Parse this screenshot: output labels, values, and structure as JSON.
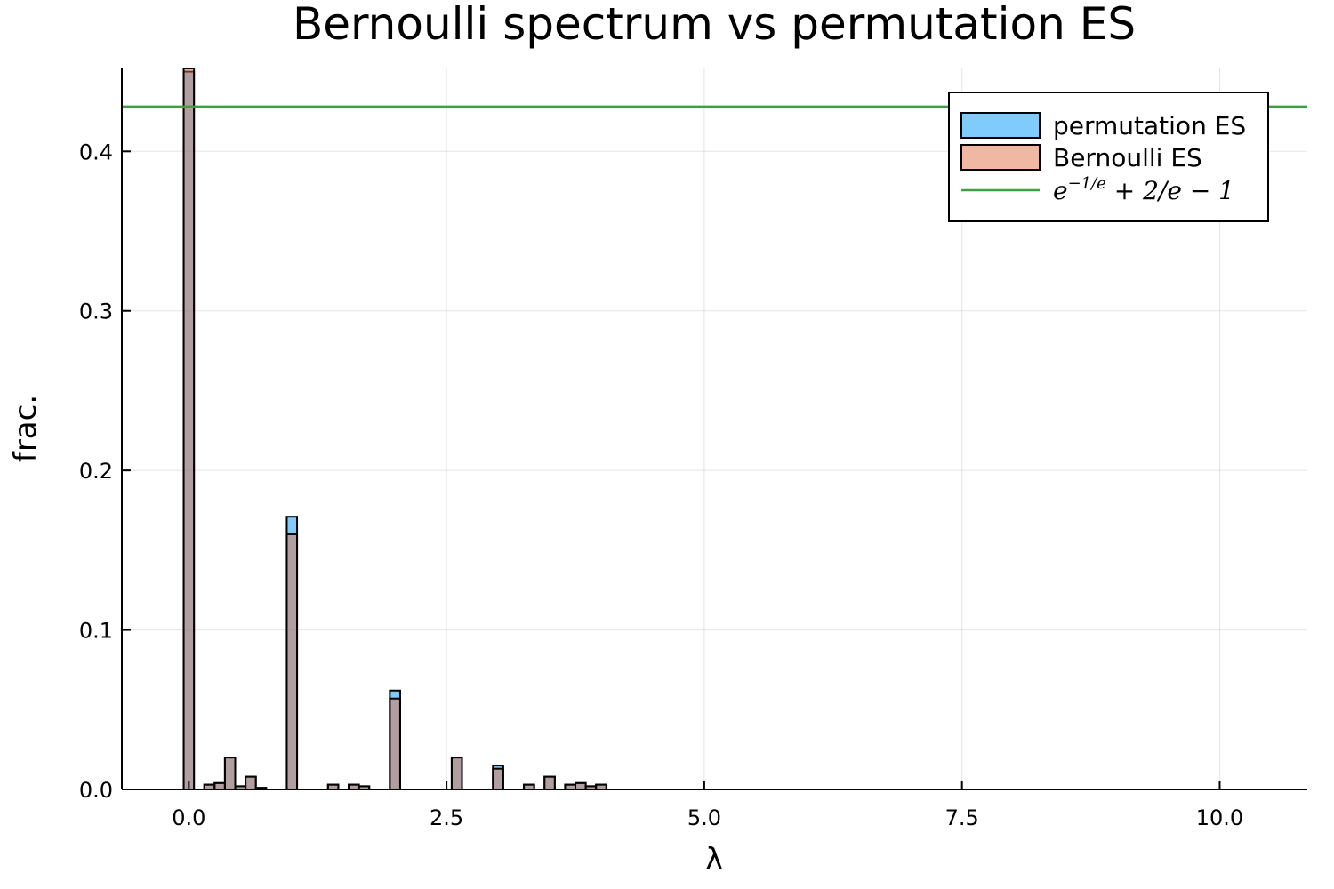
{
  "chart_data": {
    "type": "bar",
    "title": "Bernoulli spectrum vs permutation ES",
    "xlabel": "λ",
    "ylabel": "frac.",
    "xlim": [
      -0.65,
      10.85
    ],
    "ylim": [
      0,
      0.452
    ],
    "xticks": [
      0.0,
      2.5,
      5.0,
      7.5,
      10.0
    ],
    "xtick_labels": [
      "0.0",
      "2.5",
      "5.0",
      "7.5",
      "10.0"
    ],
    "yticks": [
      0.0,
      0.1,
      0.2,
      0.3,
      0.4
    ],
    "ytick_labels": [
      "0.0",
      "0.1",
      "0.2",
      "0.3",
      "0.4"
    ],
    "grid": true,
    "legend_position": "top-right",
    "bin_width": 0.1,
    "series": [
      {
        "name": "permutation ES",
        "color": "#009AFA",
        "opacity": 0.5,
        "bins": [
          {
            "x": -0.05,
            "y": 0.45
          },
          {
            "x": 0.15,
            "y": 0.003
          },
          {
            "x": 0.25,
            "y": 0.004
          },
          {
            "x": 0.35,
            "y": 0.02
          },
          {
            "x": 0.45,
            "y": 0.002
          },
          {
            "x": 0.55,
            "y": 0.008
          },
          {
            "x": 0.65,
            "y": 0.001
          },
          {
            "x": 0.95,
            "y": 0.171
          },
          {
            "x": 1.35,
            "y": 0.003
          },
          {
            "x": 1.55,
            "y": 0.003
          },
          {
            "x": 1.65,
            "y": 0.002
          },
          {
            "x": 1.95,
            "y": 0.062
          },
          {
            "x": 2.55,
            "y": 0.02
          },
          {
            "x": 2.95,
            "y": 0.015
          },
          {
            "x": 3.25,
            "y": 0.003
          },
          {
            "x": 3.45,
            "y": 0.008
          },
          {
            "x": 3.65,
            "y": 0.003
          },
          {
            "x": 3.75,
            "y": 0.004
          },
          {
            "x": 3.85,
            "y": 0.002
          },
          {
            "x": 3.95,
            "y": 0.003
          }
        ]
      },
      {
        "name": "Bernoulli ES",
        "color": "#E26F46",
        "opacity": 0.5,
        "bins": [
          {
            "x": -0.05,
            "y": 0.452
          },
          {
            "x": 0.15,
            "y": 0.003
          },
          {
            "x": 0.25,
            "y": 0.004
          },
          {
            "x": 0.35,
            "y": 0.02
          },
          {
            "x": 0.45,
            "y": 0.002
          },
          {
            "x": 0.55,
            "y": 0.008
          },
          {
            "x": 0.65,
            "y": 0.001
          },
          {
            "x": 0.95,
            "y": 0.16
          },
          {
            "x": 1.35,
            "y": 0.003
          },
          {
            "x": 1.55,
            "y": 0.003
          },
          {
            "x": 1.65,
            "y": 0.002
          },
          {
            "x": 1.95,
            "y": 0.057
          },
          {
            "x": 2.55,
            "y": 0.02
          },
          {
            "x": 2.95,
            "y": 0.013
          },
          {
            "x": 3.25,
            "y": 0.003
          },
          {
            "x": 3.45,
            "y": 0.008
          },
          {
            "x": 3.65,
            "y": 0.003
          },
          {
            "x": 3.75,
            "y": 0.004
          },
          {
            "x": 3.85,
            "y": 0.002
          },
          {
            "x": 3.95,
            "y": 0.003
          }
        ]
      }
    ],
    "hline": {
      "name": "e^{-1/e} + 2/e - 1",
      "display": {
        "base": "e",
        "sup": "−1/e",
        "rest": " + 2/e − 1"
      },
      "y": 0.4281,
      "color": "#3BA143"
    }
  }
}
